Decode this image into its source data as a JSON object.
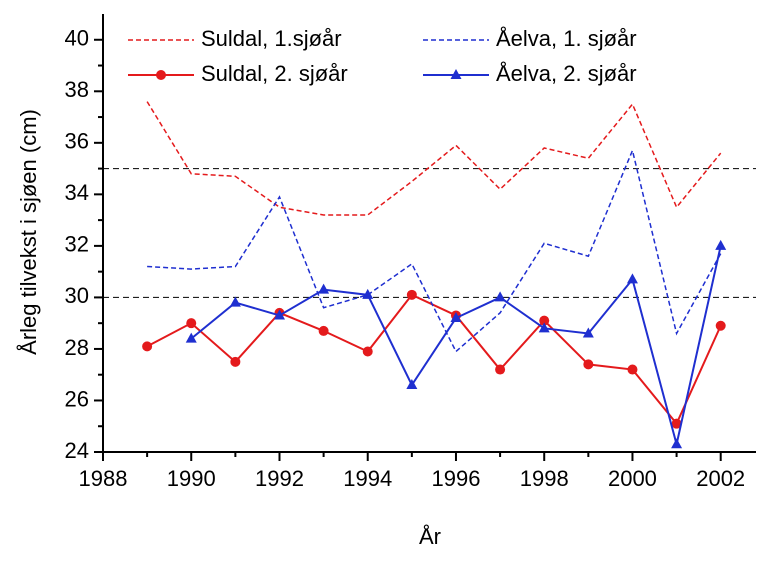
{
  "chart_data": {
    "type": "line",
    "x_label": "År",
    "y_label": "Årleg tilvekst i sjøen (cm)",
    "x": [
      1989,
      1990,
      1991,
      1992,
      1993,
      1994,
      1995,
      1996,
      1997,
      1998,
      1999,
      2000,
      2001,
      2002
    ],
    "series": [
      {
        "name": "Suldal, 1.sjøår",
        "color": "#e41a1c",
        "dashed": true,
        "marker": "none",
        "values": [
          37.6,
          34.8,
          34.7,
          33.5,
          33.2,
          33.2,
          34.5,
          35.9,
          34.2,
          35.8,
          35.4,
          37.5,
          33.5,
          35.6
        ]
      },
      {
        "name": "Suldal, 2. sjøår",
        "color": "#e41a1c",
        "dashed": false,
        "marker": "circle",
        "values": [
          28.1,
          29.0,
          27.5,
          29.4,
          28.7,
          27.9,
          30.1,
          29.3,
          27.2,
          29.1,
          27.4,
          27.2,
          25.1,
          28.9
        ]
      },
      {
        "name": "Åelva, 1. sjøår",
        "color": "#1f2fd0",
        "dashed": true,
        "marker": "none",
        "values": [
          31.2,
          31.1,
          31.2,
          33.9,
          29.6,
          30.1,
          31.3,
          27.9,
          29.4,
          32.1,
          31.6,
          35.7,
          28.6,
          31.7
        ]
      },
      {
        "name": "Åelva, 2. sjøår",
        "color": "#1f2fd0",
        "dashed": false,
        "marker": "triangle",
        "values": [
          null,
          28.4,
          29.8,
          29.3,
          30.3,
          30.1,
          26.6,
          29.2,
          30.0,
          28.8,
          28.6,
          30.7,
          24.3,
          32.0
        ]
      }
    ],
    "reference_lines": [
      30,
      35
    ],
    "xlim": [
      1988,
      2002.8
    ],
    "xticks": [
      1988,
      1990,
      1992,
      1994,
      1996,
      1998,
      2000,
      2002
    ],
    "ylim": [
      24,
      41
    ],
    "yticks": [
      24,
      26,
      28,
      30,
      32,
      34,
      36,
      38,
      40
    ]
  }
}
